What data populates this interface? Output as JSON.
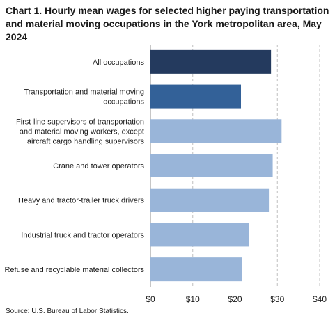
{
  "title": "Chart 1. Hourly mean wages for selected higher paying transportation and material moving occupations in the York metropolitan area, May 2024",
  "source": "Source: U.S. Bureau of Labor Statistics.",
  "colors": {
    "all_occupations": "#243a5e",
    "major_group": "#336198",
    "detailed": "#99b5d9",
    "grid": "#bfbfbf",
    "axis": "#8c8c8c"
  },
  "chart_data": {
    "type": "bar",
    "orientation": "horizontal",
    "title": "Chart 1. Hourly mean wages for selected higher paying transportation and material moving occupations in the York metropolitan area, May 2024",
    "categories": [
      "All occupations",
      "Transportation and material moving occupations",
      "First-line supervisors of transportation and material moving workers, except aircraft cargo handling supervisors",
      "Crane and tower operators",
      "Heavy and tractor-trailer truck drivers",
      "Industrial truck and tractor operators",
      "Refuse and recyclable material collectors"
    ],
    "category_label_lines": [
      [
        "All occupations"
      ],
      [
        "Transportation and material moving",
        "occupations"
      ],
      [
        "First-line supervisors of transportation",
        "and material moving workers, except",
        "aircraft cargo handling supervisors"
      ],
      [
        "Crane and tower operators"
      ],
      [
        "Heavy and tractor-trailer truck drivers"
      ],
      [
        "Industrial truck and tractor operators"
      ],
      [
        "Refuse and recyclable material collectors"
      ]
    ],
    "values": [
      28.5,
      21.4,
      31.0,
      28.9,
      28.0,
      23.3,
      21.7
    ],
    "bar_color_keys": [
      "all_occupations",
      "major_group",
      "detailed",
      "detailed",
      "detailed",
      "detailed",
      "detailed"
    ],
    "xlim": [
      0,
      40
    ],
    "xticks": [
      0,
      10,
      20,
      30,
      40
    ],
    "xtick_labels": [
      "$0",
      "$10",
      "$20",
      "$30",
      "$40"
    ],
    "xlabel": "",
    "ylabel": "",
    "grid": "vertical dashed",
    "legend": "none"
  }
}
